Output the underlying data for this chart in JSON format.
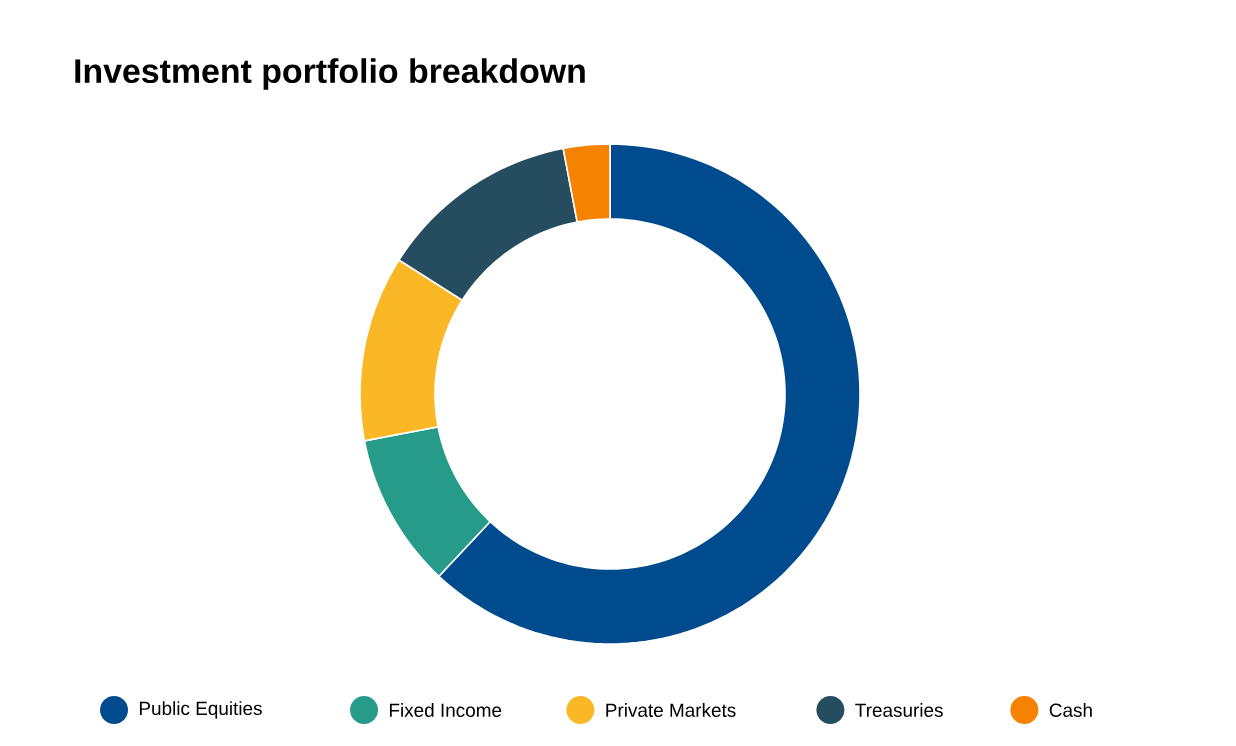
{
  "chart_data": {
    "type": "donut",
    "title": "Investment portfolio breakdown",
    "categories": [
      "Public Equities",
      "Fixed Income",
      "Private Markets",
      "Treasuries",
      "Cash"
    ],
    "values": [
      62,
      10,
      12,
      13,
      3
    ],
    "colors": [
      "#004b8d",
      "#279b8a",
      "#fbb826",
      "#264d5f",
      "#f58200"
    ],
    "legend": "bottom"
  }
}
